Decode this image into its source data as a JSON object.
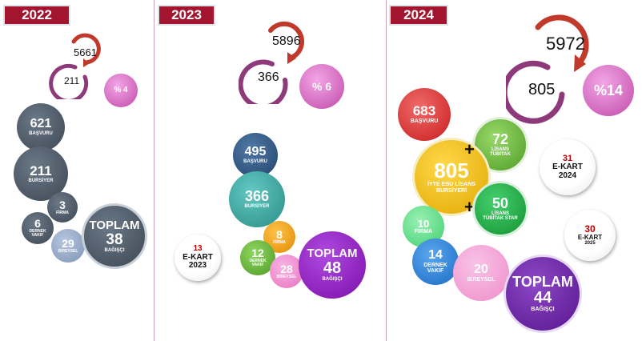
{
  "years": {
    "y2022": "2022",
    "y2023": "2023",
    "y2024": "2024"
  },
  "y2022": {
    "ring_top": "5661",
    "ring_bottom": "211",
    "percent": "% 4",
    "basvuru": {
      "value": "621",
      "label": "BAŞVURU"
    },
    "bursiyer": {
      "value": "211",
      "label": "BURSİYER"
    },
    "firma": {
      "value": "3",
      "label": "FİRMA"
    },
    "dernek": {
      "value": "6",
      "label": "DERNEK VAKIF"
    },
    "bireysel": {
      "value": "29",
      "label": "BİREYSEL"
    },
    "toplam": {
      "label": "TOPLAM",
      "value": "38",
      "sub": "BAĞIŞÇI"
    }
  },
  "y2023": {
    "ring_top": "5896",
    "ring_bottom": "366",
    "percent": "% 6",
    "basvuru": {
      "value": "495",
      "label": "BAŞVURU"
    },
    "bursiyer": {
      "value": "366",
      "label": "BURSİYER"
    },
    "firma": {
      "value": "8",
      "label": "FİRMA"
    },
    "dernek": {
      "value": "12",
      "label": "DERNEK VAKIF"
    },
    "bireysel": {
      "value": "28",
      "label": "BİREYSEL"
    },
    "toplam": {
      "label": "TOPLAM",
      "value": "48",
      "sub": "BAĞIŞÇI"
    },
    "ekart": {
      "value": "13",
      "line1": "E-KART",
      "line2": "2023"
    }
  },
  "y2024": {
    "ring_top": "5972",
    "ring_bottom": "805",
    "percent": "%14",
    "basvuru": {
      "value": "683",
      "label": "BAŞVURU"
    },
    "lisans": {
      "value": "72",
      "line1": "LİSANS",
      "line2": "TÜBİTAK"
    },
    "iyte": {
      "value": "805",
      "line1": "İYTE EBU LİSANS",
      "line2": "BURSİYERİ"
    },
    "star": {
      "value": "50",
      "line1": "LİSANS",
      "line2": "TÜBİTAK STAR"
    },
    "ekart2024": {
      "value": "31",
      "line1": "E-KART",
      "line2": "2024"
    },
    "firma": {
      "value": "10",
      "label": "FİRMA"
    },
    "ekart2025": {
      "value": "30",
      "line1": "E-KART",
      "line2": "2025"
    },
    "dernek": {
      "value": "14",
      "line1": "DERNEK",
      "line2": "VAKIF"
    },
    "bireysel": {
      "value": "20",
      "label": "BİREYSEL"
    },
    "toplam": {
      "label": "TOPLAM",
      "value": "44",
      "sub": "BAĞIŞÇI"
    },
    "plus": "+"
  },
  "colors": {
    "year_bg": "#a3142e",
    "ring_red": "#c0392b",
    "ring_purple": "#8e3a7a",
    "percent_pink": "#d96bc8",
    "slate": "#4f5c6a",
    "navy": "#2e4f73",
    "teal": "#3aa7a0",
    "orange": "#f5a011",
    "green": "#6ebc3c",
    "pink": "#f08ed0",
    "violet": "#8a1fb8",
    "red": "#e03a3a",
    "yellow": "#f2c40f",
    "green2": "#22b14c",
    "lightgreen": "#5fe08a",
    "blue": "#2583d8",
    "deep_purple": "#6a24a6"
  }
}
